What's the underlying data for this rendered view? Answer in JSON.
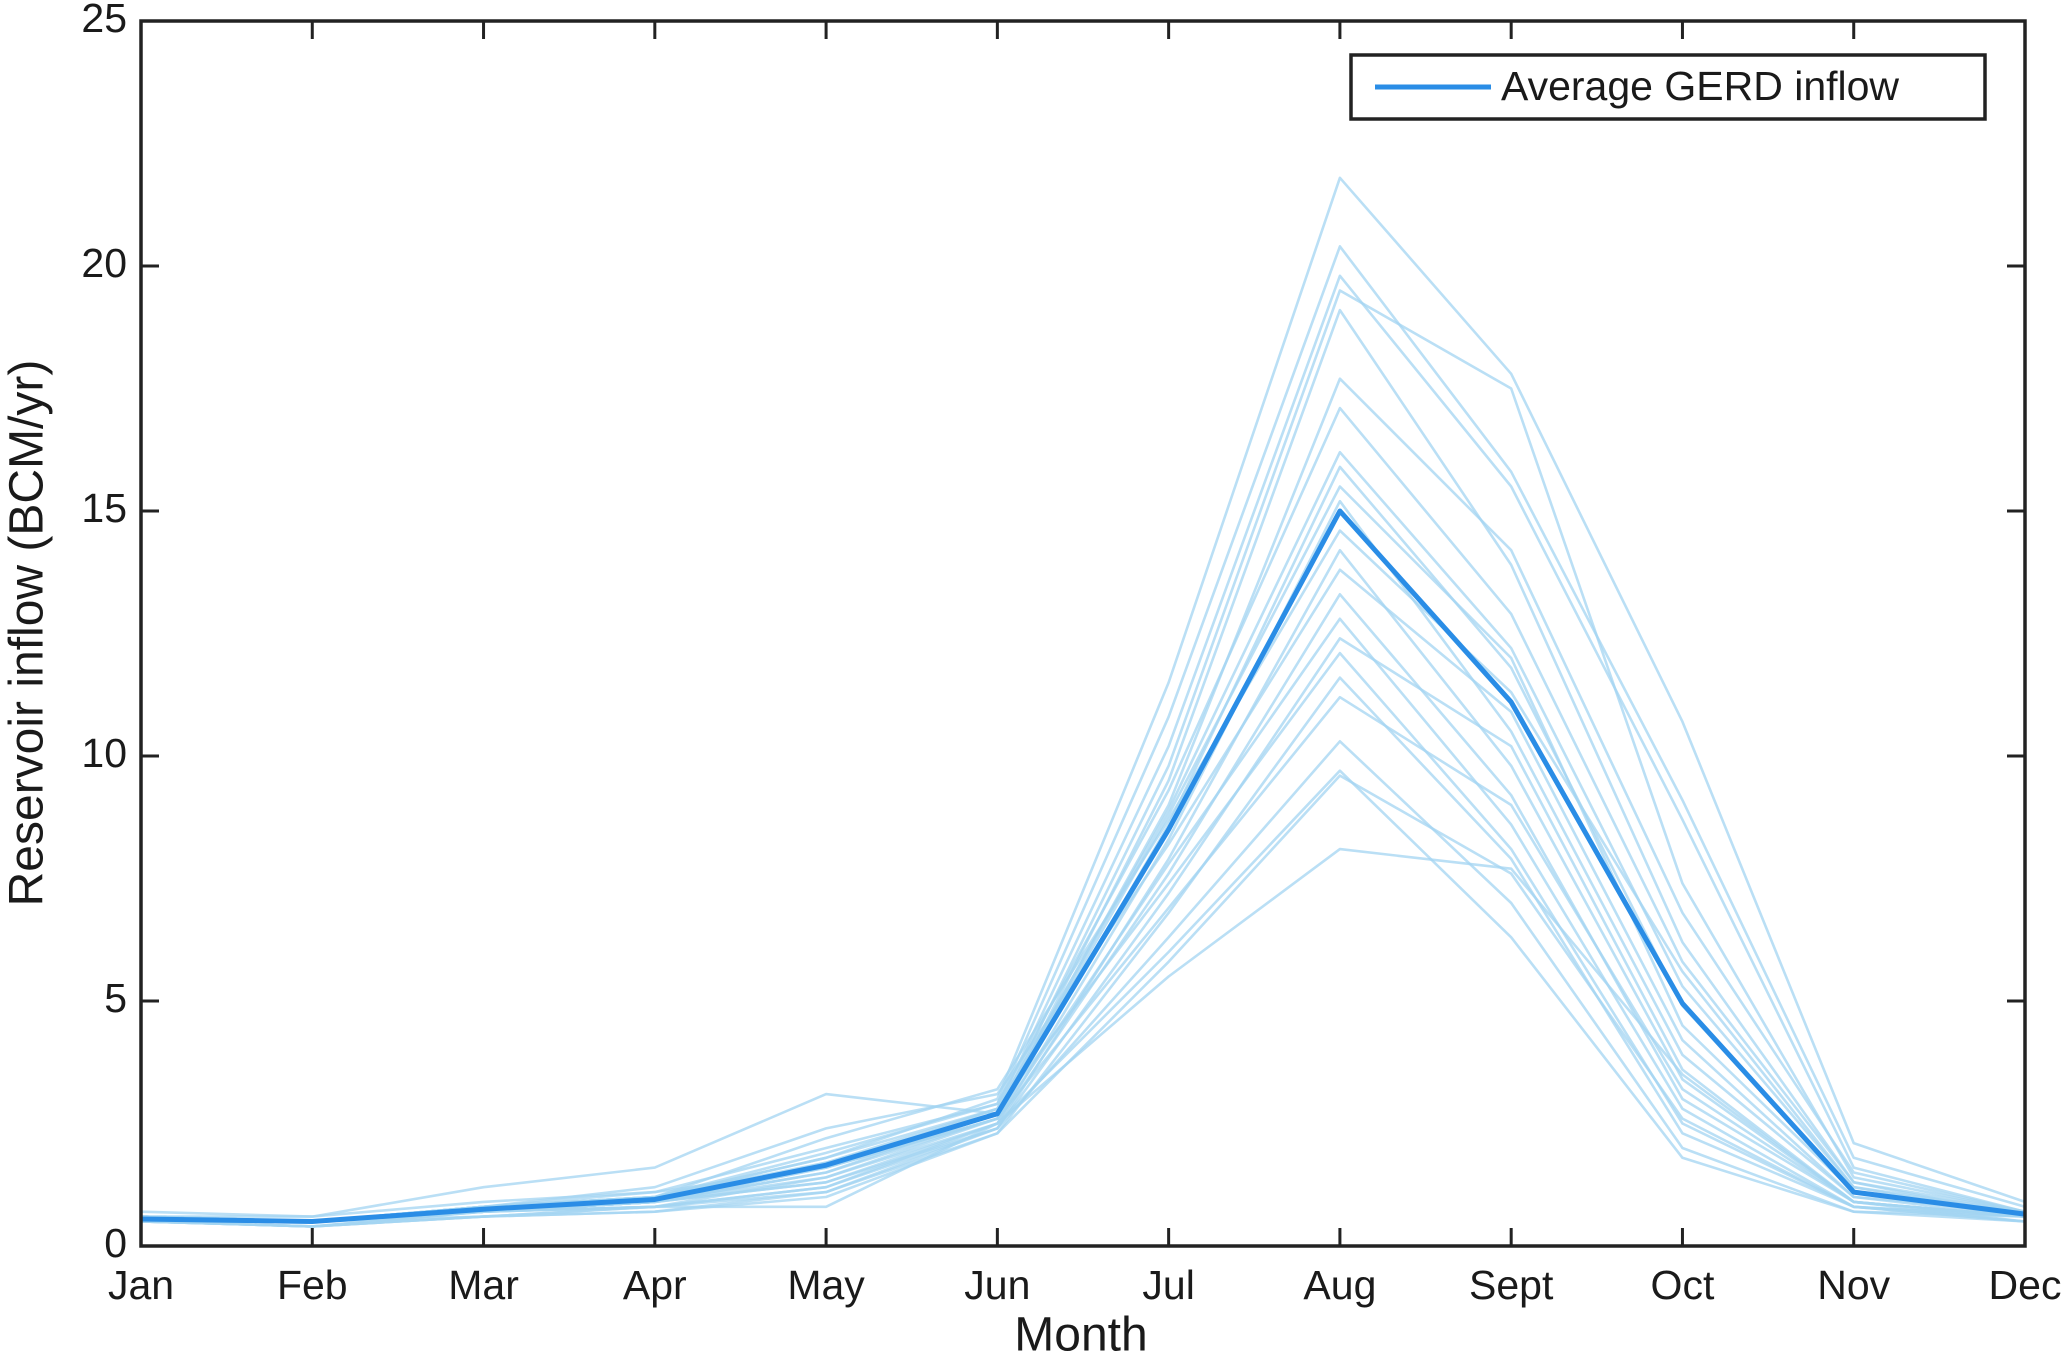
{
  "chart_data": {
    "type": "line",
    "xlabel": "Month",
    "ylabel": "Reservoir inflow (BCM/yr)",
    "categories": [
      "Jan",
      "Feb",
      "Mar",
      "Apr",
      "May",
      "Jun",
      "Jul",
      "Aug",
      "Sept",
      "Oct",
      "Nov",
      "Dec"
    ],
    "ylim": [
      0,
      25
    ],
    "yticks": [
      0,
      5,
      10,
      15,
      20,
      25
    ],
    "legend": "upper right",
    "series": [
      {
        "color": "#a3d4f2",
        "values": [
          0.6,
          0.5,
          0.8,
          1.0,
          1.8,
          3.0,
          11.5,
          21.8,
          17.8,
          10.7,
          2.1,
          0.9
        ]
      },
      {
        "color": "#a3d4f2",
        "values": [
          0.7,
          0.6,
          0.9,
          1.1,
          2.0,
          2.9,
          10.8,
          20.4,
          15.8,
          9.1,
          1.8,
          0.8
        ]
      },
      {
        "color": "#a3d4f2",
        "values": [
          0.5,
          0.5,
          0.7,
          0.9,
          1.6,
          2.8,
          10.2,
          19.8,
          15.5,
          8.7,
          1.6,
          0.7
        ]
      },
      {
        "color": "#a3d4f2",
        "values": [
          0.6,
          0.5,
          0.8,
          1.0,
          1.7,
          2.7,
          9.8,
          19.5,
          17.5,
          7.4,
          1.4,
          0.7
        ]
      },
      {
        "color": "#a3d4f2",
        "values": [
          0.5,
          0.4,
          0.7,
          0.9,
          1.5,
          2.6,
          9.5,
          19.1,
          13.9,
          6.2,
          1.3,
          0.6
        ]
      },
      {
        "color": "#a3d4f2",
        "values": [
          0.6,
          0.6,
          1.2,
          1.6,
          3.1,
          2.7,
          9.0,
          17.7,
          14.2,
          6.8,
          1.5,
          0.7
        ]
      },
      {
        "color": "#a3d4f2",
        "values": [
          0.5,
          0.5,
          0.8,
          1.0,
          1.9,
          2.9,
          9.3,
          17.1,
          12.9,
          5.8,
          1.3,
          0.7
        ]
      },
      {
        "color": "#a3d4f2",
        "values": [
          0.6,
          0.5,
          0.7,
          0.9,
          1.7,
          2.8,
          8.9,
          16.2,
          12.2,
          5.3,
          1.2,
          0.6
        ]
      },
      {
        "color": "#a3d4f2",
        "values": [
          0.5,
          0.5,
          0.8,
          1.1,
          1.6,
          2.6,
          8.6,
          15.9,
          11.8,
          4.9,
          1.1,
          0.6
        ]
      },
      {
        "color": "#a3d4f2",
        "values": [
          0.6,
          0.5,
          0.7,
          0.9,
          1.5,
          2.7,
          8.8,
          15.5,
          12.0,
          4.5,
          1.1,
          0.7
        ]
      },
      {
        "color": "#a3d4f2",
        "values": [
          0.5,
          0.4,
          0.7,
          0.8,
          1.4,
          2.5,
          8.3,
          15.2,
          10.5,
          3.9,
          1.0,
          0.6
        ]
      },
      {
        "color": "#a3d4f2",
        "values": [
          0.6,
          0.5,
          0.8,
          1.0,
          2.2,
          3.2,
          8.7,
          14.6,
          11.3,
          5.6,
          1.2,
          0.7
        ]
      },
      {
        "color": "#a3d4f2",
        "values": [
          0.5,
          0.5,
          0.7,
          0.9,
          1.3,
          2.4,
          7.9,
          14.2,
          9.8,
          3.4,
          0.9,
          0.6
        ]
      },
      {
        "color": "#a3d4f2",
        "values": [
          0.6,
          0.5,
          0.8,
          1.2,
          2.4,
          3.1,
          8.2,
          13.8,
          10.9,
          4.2,
          1.0,
          0.7
        ]
      },
      {
        "color": "#a3d4f2",
        "values": [
          0.5,
          0.4,
          0.6,
          0.8,
          1.2,
          2.5,
          7.6,
          13.3,
          9.2,
          3.0,
          0.9,
          0.5
        ]
      },
      {
        "color": "#a3d4f2",
        "values": [
          0.6,
          0.5,
          0.7,
          0.9,
          1.6,
          2.6,
          7.8,
          12.8,
          8.6,
          2.8,
          0.8,
          0.6
        ]
      },
      {
        "color": "#a3d4f2",
        "values": [
          0.5,
          0.5,
          0.7,
          0.8,
          1.1,
          2.4,
          7.2,
          12.4,
          10.2,
          3.6,
          0.9,
          0.6
        ]
      },
      {
        "color": "#a3d4f2",
        "values": [
          0.6,
          0.5,
          0.8,
          1.0,
          1.8,
          2.8,
          7.4,
          12.1,
          8.1,
          2.5,
          0.8,
          0.6
        ]
      },
      {
        "color": "#a3d4f2",
        "values": [
          0.5,
          0.4,
          0.6,
          0.7,
          1.0,
          2.3,
          6.8,
          11.6,
          7.9,
          2.3,
          0.8,
          0.5
        ]
      },
      {
        "color": "#a3d4f2",
        "values": [
          0.6,
          0.5,
          0.7,
          0.9,
          1.4,
          2.6,
          6.9,
          11.2,
          9.0,
          3.2,
          0.9,
          0.6
        ]
      },
      {
        "color": "#a3d4f2",
        "values": [
          0.5,
          0.5,
          0.6,
          0.8,
          1.2,
          2.4,
          6.3,
          10.3,
          7.0,
          2.0,
          0.7,
          0.5
        ]
      },
      {
        "color": "#a3d4f2",
        "values": [
          0.6,
          0.5,
          0.7,
          0.8,
          0.8,
          2.5,
          6.0,
          9.7,
          6.3,
          1.8,
          0.7,
          0.6
        ]
      },
      {
        "color": "#a3d4f2",
        "values": [
          0.5,
          0.4,
          0.6,
          0.7,
          1.1,
          2.3,
          5.8,
          9.6,
          7.6,
          2.6,
          0.8,
          0.5
        ]
      },
      {
        "color": "#a3d4f2",
        "values": [
          0.6,
          0.5,
          0.7,
          0.9,
          1.3,
          2.5,
          5.5,
          8.1,
          7.7,
          3.5,
          0.9,
          0.6
        ]
      },
      {
        "name": "Average GERD inflow",
        "color": "#2a8de6",
        "width": 5,
        "values": [
          0.55,
          0.5,
          0.75,
          0.95,
          1.65,
          2.7,
          8.5,
          15.0,
          11.1,
          4.95,
          1.1,
          0.65
        ]
      }
    ]
  }
}
